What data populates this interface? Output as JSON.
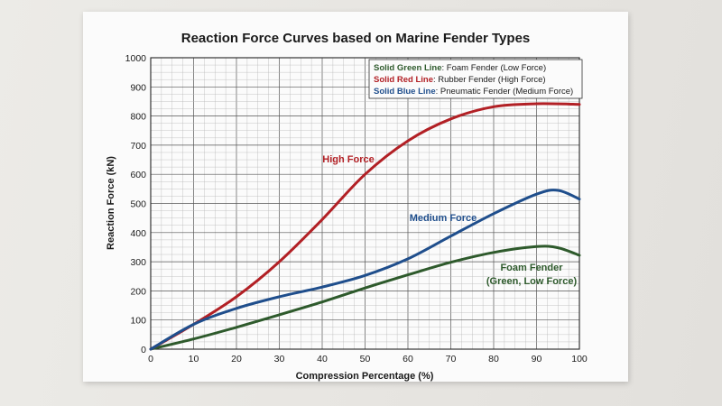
{
  "chart_data": {
    "type": "line",
    "title": "Reaction Force Curves based on Marine Fender Types",
    "xlabel": "Compression Percentage (%)",
    "ylabel": "Reaction Force (kN)",
    "xlim": [
      0,
      100
    ],
    "ylim": [
      0,
      1000
    ],
    "x_ticks": [
      "0",
      "10",
      "20",
      "30",
      "40",
      "50",
      "60",
      "70",
      "80",
      "90",
      "100"
    ],
    "y_ticks": [
      "0",
      "100",
      "200",
      "300",
      "400",
      "500",
      "600",
      "700",
      "800",
      "900",
      "1000"
    ],
    "grid": true,
    "legend_placement": "top-right",
    "series": [
      {
        "key": "green",
        "legend_key": "Solid Green Line",
        "legend_text": ": Foam Fender (Low Force)",
        "color": "#2e5a2c",
        "x": [
          0,
          10,
          20,
          30,
          40,
          50,
          60,
          70,
          80,
          90,
          95,
          100
        ],
        "y": [
          0,
          35,
          75,
          118,
          162,
          210,
          255,
          298,
          332,
          352,
          348,
          322
        ]
      },
      {
        "key": "red",
        "legend_key": "Solid Red Line",
        "legend_text": ": Rubber Fender (High Force)",
        "color": "#b22025",
        "x": [
          0,
          10,
          20,
          30,
          40,
          50,
          60,
          70,
          80,
          90,
          100
        ],
        "y": [
          0,
          85,
          180,
          300,
          445,
          600,
          715,
          790,
          832,
          842,
          840
        ]
      },
      {
        "key": "blue",
        "legend_key": "Solid Blue Line",
        "legend_text": ": Pneumatic Fender (Medium Force)",
        "color": "#1f4e8c",
        "x": [
          0,
          10,
          20,
          30,
          40,
          50,
          60,
          70,
          80,
          90,
          95,
          100
        ],
        "y": [
          0,
          85,
          140,
          180,
          213,
          253,
          310,
          388,
          465,
          532,
          545,
          515
        ]
      }
    ],
    "annotations": [
      {
        "text": "High Force",
        "series": "red"
      },
      {
        "text": "Medium Force",
        "series": "blue"
      },
      {
        "text": "Foam Fender",
        "series": "green"
      },
      {
        "text": "(Green, Low Force)",
        "series": "green"
      }
    ]
  }
}
